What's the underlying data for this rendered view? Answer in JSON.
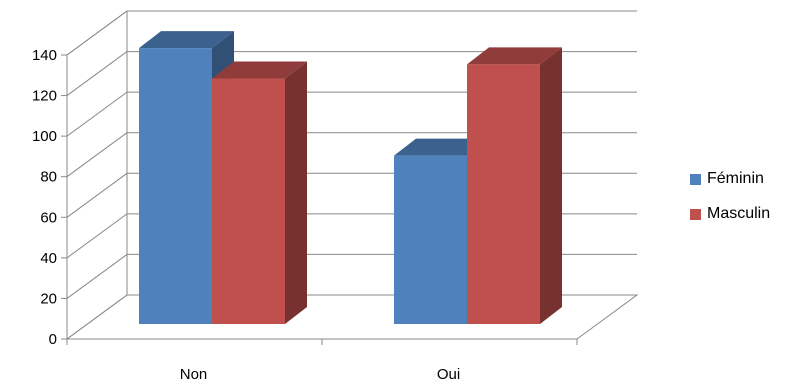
{
  "chart_data": {
    "type": "bar",
    "style": "3d-clustered-column",
    "categories": [
      "Non",
      "Oui"
    ],
    "series": [
      {
        "name": "Féminin",
        "values": [
          136,
          83
        ],
        "color": "#4F81BD"
      },
      {
        "name": "Masculin",
        "values": [
          121,
          128
        ],
        "color": "#C0504D"
      }
    ],
    "y_ticks": [
      0,
      20,
      40,
      60,
      80,
      100,
      120,
      140
    ],
    "ylim": [
      0,
      140
    ],
    "grid": true,
    "legend_position": "right"
  }
}
